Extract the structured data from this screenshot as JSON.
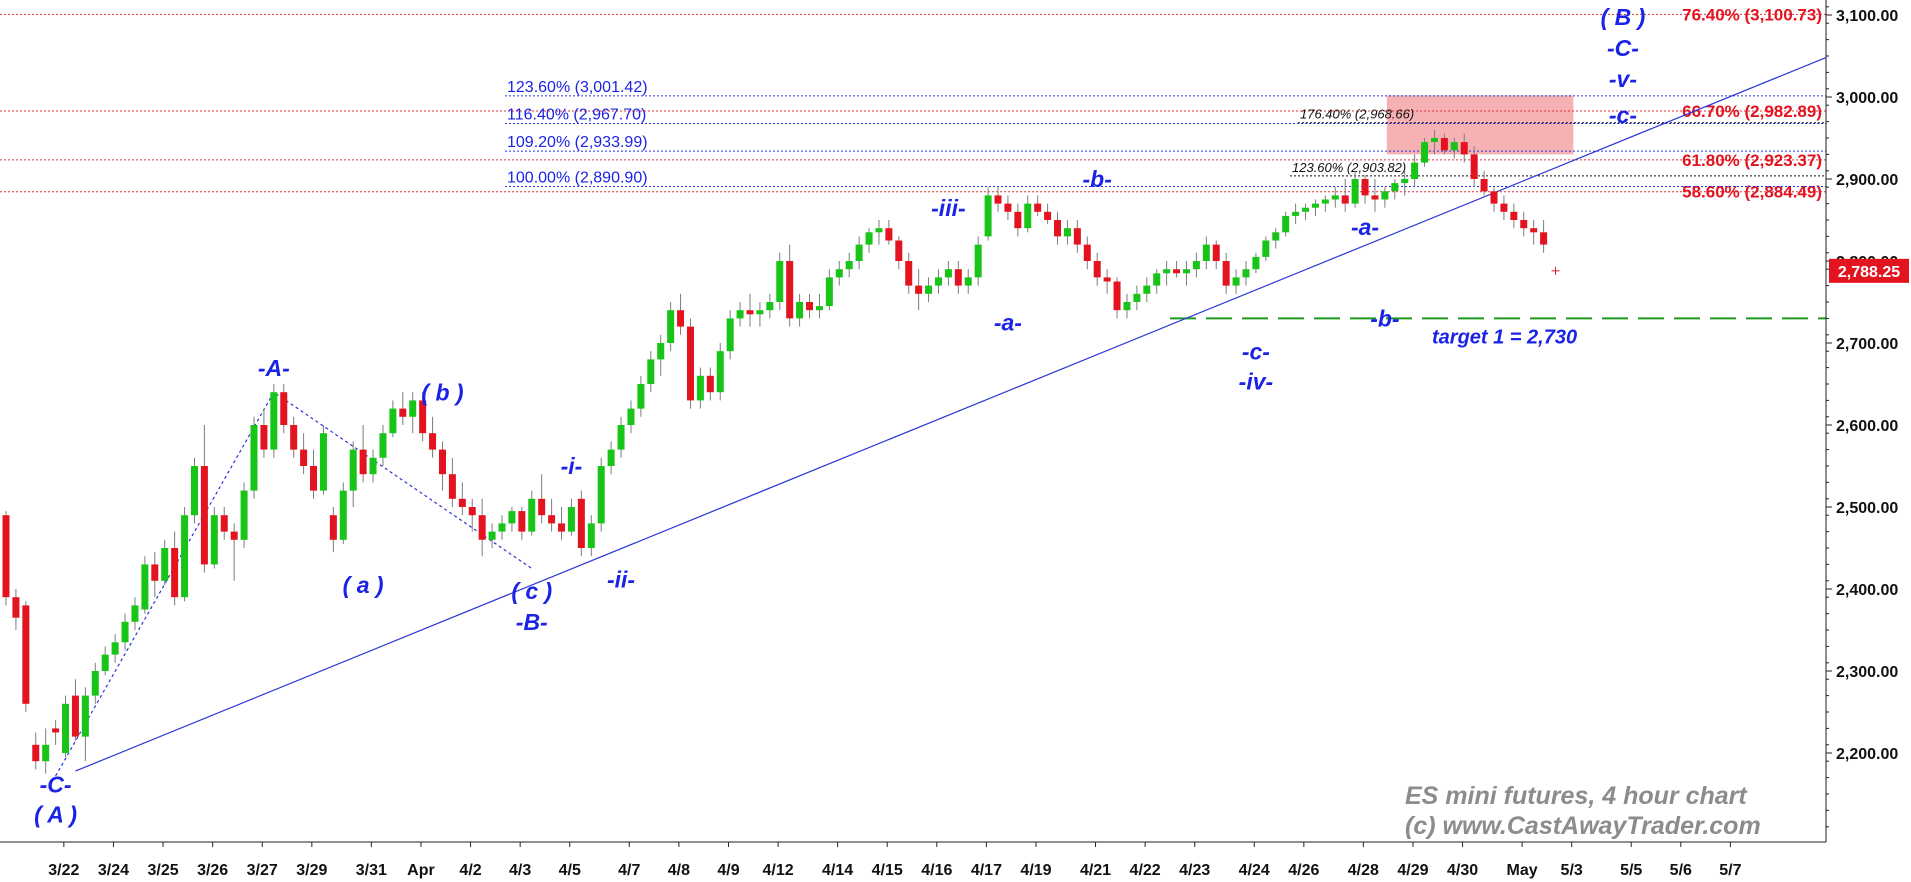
{
  "chart_data": {
    "type": "candlestick",
    "title": "",
    "ylim": [
      2100,
      3120
    ],
    "yticks": [
      2200,
      2300,
      2400,
      2500,
      2600,
      2700,
      2800,
      2900,
      3000,
      3100
    ],
    "ytick_labels": [
      "2,200.00",
      "2,300.00",
      "2,400.00",
      "2,500.00",
      "2,600.00",
      "2,700.00",
      "2,800.00",
      "2,900.00",
      "3,000.00",
      "3,100.00"
    ],
    "x_labels": [
      "3/22",
      "3/24",
      "3/25",
      "3/26",
      "3/27",
      "3/29",
      "3/31",
      "Apr",
      "4/2",
      "4/3",
      "4/5",
      "4/7",
      "4/8",
      "4/9",
      "4/12",
      "4/14",
      "4/15",
      "4/16",
      "4/17",
      "4/19",
      "4/21",
      "4/22",
      "4/23",
      "4/24",
      "4/26",
      "4/28",
      "4/29",
      "4/30",
      "May",
      "5/3",
      "5/5",
      "5/6",
      "5/7"
    ],
    "x_label_index": [
      2,
      7,
      12,
      17,
      22,
      27,
      33,
      38,
      43,
      48,
      53,
      59,
      64,
      69,
      74,
      80,
      85,
      90,
      95,
      100,
      106,
      111,
      116,
      122,
      127,
      133,
      138,
      143,
      149,
      154,
      160,
      165,
      170
    ],
    "last_price": "2,788.25",
    "current_marker": 2788,
    "candles": [
      [
        2490,
        2495,
        2380,
        2390
      ],
      [
        2390,
        2400,
        2350,
        2365
      ],
      [
        2380,
        2385,
        2250,
        2260
      ],
      [
        2210,
        2225,
        2180,
        2190
      ],
      [
        2190,
        2230,
        2175,
        2210
      ],
      [
        2230,
        2240,
        2210,
        2225
      ],
      [
        2200,
        2270,
        2195,
        2260
      ],
      [
        2270,
        2290,
        2215,
        2220
      ],
      [
        2220,
        2280,
        2190,
        2270
      ],
      [
        2270,
        2310,
        2260,
        2300
      ],
      [
        2300,
        2330,
        2295,
        2320
      ],
      [
        2320,
        2345,
        2310,
        2335
      ],
      [
        2335,
        2370,
        2325,
        2360
      ],
      [
        2360,
        2390,
        2350,
        2380
      ],
      [
        2375,
        2440,
        2370,
        2430
      ],
      [
        2430,
        2445,
        2390,
        2410
      ],
      [
        2410,
        2460,
        2405,
        2450
      ],
      [
        2450,
        2470,
        2380,
        2390
      ],
      [
        2390,
        2500,
        2385,
        2490
      ],
      [
        2490,
        2560,
        2480,
        2550
      ],
      [
        2550,
        2600,
        2420,
        2430
      ],
      [
        2430,
        2500,
        2425,
        2490
      ],
      [
        2490,
        2500,
        2460,
        2470
      ],
      [
        2470,
        2480,
        2410,
        2460
      ],
      [
        2460,
        2530,
        2450,
        2520
      ],
      [
        2520,
        2610,
        2510,
        2600
      ],
      [
        2600,
        2620,
        2560,
        2570
      ],
      [
        2570,
        2650,
        2560,
        2640
      ],
      [
        2640,
        2650,
        2590,
        2600
      ],
      [
        2600,
        2610,
        2560,
        2570
      ],
      [
        2570,
        2590,
        2540,
        2550
      ],
      [
        2550,
        2570,
        2510,
        2520
      ],
      [
        2520,
        2600,
        2515,
        2590
      ],
      [
        2490,
        2500,
        2445,
        2460
      ],
      [
        2460,
        2530,
        2455,
        2520
      ],
      [
        2520,
        2580,
        2500,
        2570
      ],
      [
        2570,
        2600,
        2530,
        2540
      ],
      [
        2540,
        2570,
        2530,
        2560
      ],
      [
        2560,
        2600,
        2550,
        2590
      ],
      [
        2590,
        2630,
        2585,
        2620
      ],
      [
        2620,
        2640,
        2600,
        2610
      ],
      [
        2610,
        2640,
        2590,
        2630
      ],
      [
        2630,
        2640,
        2580,
        2590
      ],
      [
        2590,
        2610,
        2560,
        2570
      ],
      [
        2570,
        2580,
        2520,
        2540
      ],
      [
        2540,
        2560,
        2500,
        2510
      ],
      [
        2510,
        2530,
        2490,
        2500
      ],
      [
        2500,
        2510,
        2470,
        2490
      ],
      [
        2490,
        2510,
        2440,
        2460
      ],
      [
        2460,
        2480,
        2450,
        2470
      ],
      [
        2470,
        2490,
        2460,
        2480
      ],
      [
        2480,
        2500,
        2470,
        2495
      ],
      [
        2495,
        2500,
        2460,
        2470
      ],
      [
        2470,
        2520,
        2465,
        2510
      ],
      [
        2510,
        2540,
        2480,
        2490
      ],
      [
        2490,
        2510,
        2470,
        2480
      ],
      [
        2480,
        2500,
        2460,
        2470
      ],
      [
        2470,
        2510,
        2465,
        2500
      ],
      [
        2510,
        2520,
        2440,
        2450
      ],
      [
        2450,
        2490,
        2440,
        2480
      ],
      [
        2480,
        2560,
        2470,
        2550
      ],
      [
        2550,
        2580,
        2540,
        2570
      ],
      [
        2570,
        2610,
        2560,
        2600
      ],
      [
        2600,
        2630,
        2590,
        2620
      ],
      [
        2620,
        2660,
        2610,
        2650
      ],
      [
        2650,
        2690,
        2640,
        2680
      ],
      [
        2680,
        2710,
        2660,
        2700
      ],
      [
        2700,
        2750,
        2690,
        2740
      ],
      [
        2740,
        2760,
        2710,
        2720
      ],
      [
        2720,
        2730,
        2620,
        2630
      ],
      [
        2630,
        2670,
        2620,
        2660
      ],
      [
        2660,
        2670,
        2630,
        2640
      ],
      [
        2640,
        2700,
        2630,
        2690
      ],
      [
        2690,
        2740,
        2680,
        2730
      ],
      [
        2730,
        2750,
        2720,
        2740
      ],
      [
        2740,
        2760,
        2720,
        2735
      ],
      [
        2735,
        2750,
        2720,
        2740
      ],
      [
        2740,
        2760,
        2730,
        2750
      ],
      [
        2750,
        2810,
        2740,
        2800
      ],
      [
        2800,
        2820,
        2720,
        2730
      ],
      [
        2730,
        2760,
        2720,
        2750
      ],
      [
        2750,
        2760,
        2730,
        2740
      ],
      [
        2740,
        2760,
        2730,
        2745
      ],
      [
        2745,
        2790,
        2740,
        2780
      ],
      [
        2780,
        2800,
        2770,
        2790
      ],
      [
        2790,
        2810,
        2780,
        2800
      ],
      [
        2800,
        2830,
        2790,
        2820
      ],
      [
        2820,
        2840,
        2810,
        2835
      ],
      [
        2835,
        2850,
        2820,
        2840
      ],
      [
        2840,
        2850,
        2820,
        2825
      ],
      [
        2825,
        2830,
        2790,
        2800
      ],
      [
        2800,
        2810,
        2760,
        2770
      ],
      [
        2770,
        2790,
        2740,
        2760
      ],
      [
        2760,
        2780,
        2750,
        2770
      ],
      [
        2770,
        2790,
        2760,
        2780
      ],
      [
        2780,
        2800,
        2770,
        2790
      ],
      [
        2790,
        2800,
        2760,
        2770
      ],
      [
        2770,
        2790,
        2760,
        2780
      ],
      [
        2780,
        2830,
        2770,
        2820
      ],
      [
        2830,
        2890,
        2825,
        2880
      ],
      [
        2880,
        2890,
        2860,
        2870
      ],
      [
        2870,
        2880,
        2850,
        2860
      ],
      [
        2860,
        2870,
        2830,
        2840
      ],
      [
        2840,
        2880,
        2835,
        2870
      ],
      [
        2870,
        2880,
        2855,
        2860
      ],
      [
        2860,
        2870,
        2845,
        2850
      ],
      [
        2850,
        2860,
        2820,
        2830
      ],
      [
        2830,
        2850,
        2820,
        2840
      ],
      [
        2840,
        2850,
        2810,
        2820
      ],
      [
        2820,
        2830,
        2790,
        2800
      ],
      [
        2800,
        2810,
        2770,
        2780
      ],
      [
        2780,
        2790,
        2760,
        2775
      ],
      [
        2775,
        2780,
        2730,
        2740
      ],
      [
        2740,
        2760,
        2730,
        2750
      ],
      [
        2750,
        2770,
        2740,
        2760
      ],
      [
        2760,
        2780,
        2750,
        2770
      ],
      [
        2770,
        2790,
        2760,
        2785
      ],
      [
        2785,
        2800,
        2770,
        2790
      ],
      [
        2790,
        2800,
        2780,
        2785
      ],
      [
        2785,
        2800,
        2770,
        2790
      ],
      [
        2790,
        2810,
        2780,
        2800
      ],
      [
        2800,
        2830,
        2790,
        2820
      ],
      [
        2820,
        2825,
        2790,
        2800
      ],
      [
        2800,
        2810,
        2760,
        2770
      ],
      [
        2770,
        2790,
        2760,
        2780
      ],
      [
        2780,
        2800,
        2770,
        2790
      ],
      [
        2790,
        2810,
        2785,
        2805
      ],
      [
        2805,
        2830,
        2800,
        2825
      ],
      [
        2825,
        2840,
        2815,
        2835
      ],
      [
        2835,
        2860,
        2830,
        2855
      ],
      [
        2855,
        2870,
        2845,
        2860
      ],
      [
        2860,
        2870,
        2850,
        2865
      ],
      [
        2865,
        2875,
        2855,
        2870
      ],
      [
        2870,
        2880,
        2860,
        2875
      ],
      [
        2875,
        2890,
        2865,
        2880
      ],
      [
        2880,
        2900,
        2860,
        2870
      ],
      [
        2870,
        2910,
        2865,
        2900
      ],
      [
        2900,
        2905,
        2870,
        2880
      ],
      [
        2880,
        2900,
        2860,
        2875
      ],
      [
        2875,
        2890,
        2865,
        2885
      ],
      [
        2885,
        2900,
        2875,
        2895
      ],
      [
        2895,
        2910,
        2880,
        2900
      ],
      [
        2900,
        2930,
        2890,
        2920
      ],
      [
        2920,
        2950,
        2915,
        2945
      ],
      [
        2945,
        2960,
        2930,
        2950
      ],
      [
        2950,
        2955,
        2930,
        2935
      ],
      [
        2935,
        2950,
        2925,
        2945
      ],
      [
        2945,
        2955,
        2920,
        2930
      ],
      [
        2930,
        2940,
        2890,
        2900
      ],
      [
        2900,
        2910,
        2880,
        2885
      ],
      [
        2885,
        2890,
        2860,
        2870
      ],
      [
        2870,
        2880,
        2850,
        2860
      ],
      [
        2860,
        2870,
        2840,
        2850
      ],
      [
        2850,
        2860,
        2830,
        2840
      ],
      [
        2840,
        2850,
        2820,
        2835
      ],
      [
        2835,
        2850,
        2810,
        2820
      ]
    ],
    "fib_blue": [
      {
        "label": "123.60% (3,001.42)",
        "value": 3001.42
      },
      {
        "label": "116.40% (2,967.70)",
        "value": 2967.7
      },
      {
        "label": "109.20% (2,933.99)",
        "value": 2933.99
      },
      {
        "label": "100.00% (2,890.90)",
        "value": 2890.9
      }
    ],
    "fib_red": [
      {
        "label": "76.40% (3,100.73)",
        "value": 3100.73
      },
      {
        "label": "66.70% (2,982.89)",
        "value": 2982.89
      },
      {
        "label": "61.80% (2,923.37)",
        "value": 2923.37
      },
      {
        "label": "58.60% (2,884.49)",
        "value": 2884.49
      }
    ],
    "fib_black": [
      {
        "label": "176.40% (2,968.66)",
        "value": 2968.66
      },
      {
        "label": "123.60% (2,903.82)",
        "value": 2903.82
      }
    ],
    "target": {
      "label": "target 1 = 2,730",
      "value": 2730
    },
    "zone": {
      "from": 2930,
      "to": 3002
    },
    "wave_labels": [
      {
        "text": "-C-",
        "i": 5,
        "v": 2152
      },
      {
        "text": "( A )",
        "i": 5,
        "v": 2115
      },
      {
        "text": "-A-",
        "i": 27,
        "v": 2660
      },
      {
        "text": "( a )",
        "i": 36,
        "v": 2395
      },
      {
        "text": "( b )",
        "i": 44,
        "v": 2630
      },
      {
        "text": "( c )",
        "i": 53,
        "v": 2388
      },
      {
        "text": "-B-",
        "i": 53,
        "v": 2350
      },
      {
        "text": "-i-",
        "i": 57,
        "v": 2540
      },
      {
        "text": "-ii-",
        "i": 62,
        "v": 2402
      },
      {
        "text": "-iii-",
        "i": 95,
        "v": 2855
      },
      {
        "text": "-a-",
        "i": 101,
        "v": 2715
      },
      {
        "text": "-b-",
        "i": 110,
        "v": 2890
      },
      {
        "text": "-c-",
        "i": 126,
        "v": 2680
      },
      {
        "text": "-iv-",
        "i": 126,
        "v": 2643
      },
      {
        "text": "-a-",
        "i": 137,
        "v": 2832
      },
      {
        "text": "-b-",
        "i": 139,
        "v": 2720
      },
      {
        "text": "-c-",
        "i": 163,
        "v": 2968
      },
      {
        "text": "-v-",
        "i": 163,
        "v": 3012
      },
      {
        "text": "-C-",
        "i": 163,
        "v": 3050
      },
      {
        "text": "( B )",
        "i": 163,
        "v": 3088
      }
    ],
    "trendline": [
      [
        7,
        2178
      ],
      [
        195,
        3105
      ]
    ],
    "dotted_path": [
      [
        5,
        2172
      ],
      [
        27,
        2640
      ],
      [
        53,
        2425
      ]
    ],
    "watermark_line1": "ES mini futures, 4 hour chart",
    "watermark_line2": "(c) www.CastAwayTrader.com"
  }
}
